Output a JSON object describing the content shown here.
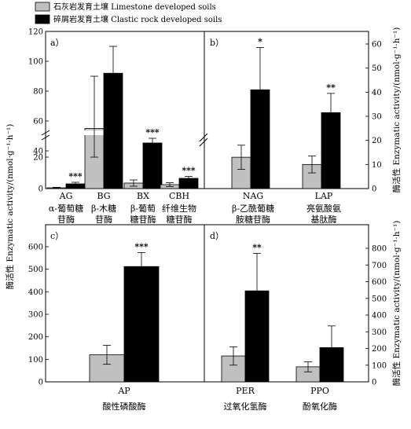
{
  "legend": {
    "entries": [
      {
        "label": "石灰岩发育土壤 Limestone developed soils",
        "color": "#c0c0c0"
      },
      {
        "label": "碎屑岩发育土壤 Clastic rock developed soils",
        "color": "#000000"
      }
    ]
  },
  "axis_labels": {
    "left": "酶活性 Enzymatic activity/(nmol·g⁻¹·h⁻¹)",
    "right_top": "酶活性 Enzymatic activity/(nmol·g⁻¹·h⁻¹)",
    "right_bottom": "酶活性 Enzymatic activity/(nmol·g⁻¹·h⁻¹)"
  },
  "panel_labels": {
    "a": "a）",
    "b": "b）",
    "c": "c）",
    "d": "d）"
  },
  "colors": {
    "limestone": "#c0c0c0",
    "clastic": "#000000"
  },
  "chart_data": [
    {
      "panel": "a",
      "type": "bar",
      "broken_axis": true,
      "categories": [
        "AG",
        "BG",
        "BX",
        "CBH"
      ],
      "category_names": [
        [
          "α-葡萄糖",
          "苷酶"
        ],
        [
          "β-木糖",
          "苷酶"
        ],
        [
          "β-葡萄",
          "糖苷酶"
        ],
        [
          "纤维生物",
          "糖苷酶"
        ]
      ],
      "ylim_lower": [
        0,
        30
      ],
      "ylim_upper": [
        50,
        120
      ],
      "yticks": [
        "0",
        "20",
        "40",
        "60",
        "80",
        "100",
        "120"
      ],
      "series": [
        {
          "name": "石灰岩发育土壤 Limestone developed soils",
          "values": [
            0.5,
            55,
            3.5,
            2.5
          ],
          "errors": [
            0.3,
            35,
            2,
            1.2
          ]
        },
        {
          "name": "碎屑岩发育土壤 Clastic rock developed soils",
          "values": [
            3,
            92,
            29,
            6.5
          ],
          "errors": [
            1,
            18,
            3,
            1.2
          ]
        }
      ],
      "significance": [
        "***",
        "",
        "***",
        "***"
      ]
    },
    {
      "panel": "b",
      "type": "bar",
      "categories": [
        "NAG",
        "LAP"
      ],
      "category_names": [
        [
          "β-乙酰葡糖",
          "胺糖苷酶"
        ],
        [
          "亮氨酸氨",
          "基肽酶"
        ]
      ],
      "ylim": [
        0,
        60
      ],
      "yticks": [
        "0",
        "10",
        "20",
        "30",
        "40",
        "50",
        "60"
      ],
      "series": [
        {
          "name": "石灰岩发育土壤 Limestone developed soils",
          "values": [
            13,
            10
          ],
          "errors": [
            5,
            3.5
          ]
        },
        {
          "name": "碎屑岩发育土壤 Clastic rock developed soils",
          "values": [
            41,
            31.5
          ],
          "errors": [
            17.5,
            8
          ]
        }
      ],
      "significance": [
        "*",
        "**"
      ]
    },
    {
      "panel": "c",
      "type": "bar",
      "categories": [
        "AP"
      ],
      "category_names": [
        [
          "酸性磷酸酶"
        ]
      ],
      "ylim": [
        0,
        600
      ],
      "yticks": [
        "0",
        "100",
        "200",
        "300",
        "400",
        "500",
        "600"
      ],
      "series": [
        {
          "name": "石灰岩发育土壤 Limestone developed soils",
          "values": [
            120
          ],
          "errors": [
            42
          ]
        },
        {
          "name": "碎屑岩发育土壤 Clastic rock developed soils",
          "values": [
            512
          ],
          "errors": [
            62
          ]
        }
      ],
      "significance": [
        "***"
      ]
    },
    {
      "panel": "d",
      "type": "bar",
      "categories": [
        "PER",
        "PPO"
      ],
      "category_names": [
        [
          "过氧化氢酶"
        ],
        [
          "酚氧化酶"
        ]
      ],
      "ylim": [
        0,
        800
      ],
      "yticks": [
        "0",
        "100",
        "200",
        "300",
        "400",
        "500",
        "600",
        "700",
        "800"
      ],
      "series": [
        {
          "name": "石灰岩发育土壤 Limestone developed soils",
          "values": [
            155,
            90
          ],
          "errors": [
            55,
            30
          ]
        },
        {
          "name": "碎屑岩发育土壤 Clastic rock developed soils",
          "values": [
            545,
            205
          ],
          "errors": [
            225,
            130
          ]
        }
      ],
      "significance": [
        "**",
        ""
      ]
    }
  ]
}
